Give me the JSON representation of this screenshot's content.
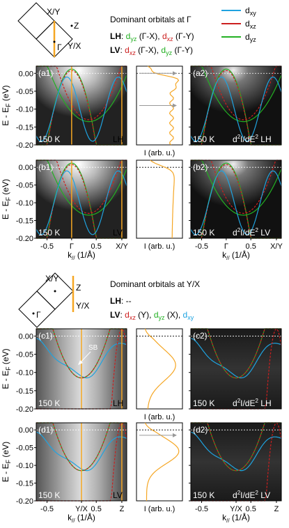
{
  "colors": {
    "dxy": "#1fa3e0",
    "dxz": "#cc1f1f",
    "dyz": "#22b022",
    "kcut": "#f5a623",
    "edc": "#f5a623"
  },
  "top_legend": {
    "title": "Dominant orbitals at Γ",
    "lh_label": "LH",
    "lh_rest_1": ": ",
    "lh_dyz": "d",
    "lh_dyz_sub": "yz",
    "lh_dyz_k": " (Γ-X), ",
    "lh_dxz": "d",
    "lh_dxz_sub": "xz",
    "lh_dxz_k": " (Γ-Y)",
    "lv_label": "LV",
    "lv_rest_1": ": ",
    "lv_dxz": "d",
    "lv_dxz_sub": "xz",
    "lv_dxz_k": " (Γ-X), ",
    "lv_dyz": "d",
    "lv_dyz_sub": "yz",
    "lv_dyz_k": " (Γ-Y)"
  },
  "orbital_legend": [
    {
      "name": "d",
      "sub": "xy",
      "color": "#1fa3e0"
    },
    {
      "name": "d",
      "sub": "xz",
      "color": "#cc1f1f"
    },
    {
      "name": "d",
      "sub": "yz",
      "color": "#22b022"
    }
  ],
  "bz_top": {
    "x_y": "X/Y",
    "z": "Z",
    "y_x": "Y/X",
    "gamma": "Γ"
  },
  "bz_bottom": {
    "x_y": "X/Y",
    "z": "Z",
    "y_x": "Y/X",
    "gamma": "Γ"
  },
  "bottom_legend": {
    "title": "Dominant orbitals at Y/X",
    "lh_label": "LH",
    "lh_rest": ": --",
    "lv_label": "LV",
    "lv_rest_1": ": ",
    "lv_dxz": "d",
    "lv_dxz_sub": "xz",
    "lv_dxz_k": " (Y), ",
    "lv_dyz": "d",
    "lv_dyz_sub": "yz",
    "lv_dyz_k": " (X), ",
    "lv_dxy": "d",
    "lv_dxy_sub": "xy"
  },
  "axes": {
    "ylabel_main": "E - E",
    "ylabel_sub": "F",
    "ylabel_unit": " (eV)",
    "yticks": [
      "0.00",
      "-0.05",
      "-0.10",
      "-0.15",
      "-0.20"
    ],
    "xlabel_main": "k",
    "xlabel_sub": "//",
    "xlabel_unit": " (1/Å)",
    "edc_xlabel": "I (arb. u.)",
    "xticks_top": [
      "-0.5",
      "Γ",
      "0.5",
      "X/Y"
    ],
    "xticks_bottom": [
      "-0.5",
      "Y/X",
      "0.5",
      "Z"
    ]
  },
  "panels": [
    {
      "id": "(a1)",
      "temp": "150 K",
      "mode": "LH"
    },
    {
      "id": "(a2)",
      "temp": "150 K",
      "deriv": "d",
      "deriv_sup": "2",
      "deriv_mid": "I/dE",
      "deriv_sup2": "2",
      "mode": "LH"
    },
    {
      "id": "(b1)",
      "temp": "150 K",
      "mode": "LV"
    },
    {
      "id": "(b2)",
      "temp": "150 K",
      "deriv": "d",
      "deriv_sup": "2",
      "deriv_mid": "I/dE",
      "deriv_sup2": "2",
      "mode": "LV"
    },
    {
      "id": "(c1)",
      "temp": "150 K",
      "mode": "LH",
      "annotation": "SB"
    },
    {
      "id": "(c2)",
      "temp": "150 K",
      "deriv": "d",
      "deriv_sup": "2",
      "deriv_mid": "I/dE",
      "deriv_sup2": "2",
      "mode": "LH"
    },
    {
      "id": "(d1)",
      "temp": "150 K",
      "mode": "LV"
    },
    {
      "id": "(d2)",
      "temp": "150 K",
      "deriv": "d",
      "deriv_sup": "2",
      "deriv_mid": "I/dE",
      "deriv_sup2": "2",
      "mode": "LV"
    }
  ]
}
